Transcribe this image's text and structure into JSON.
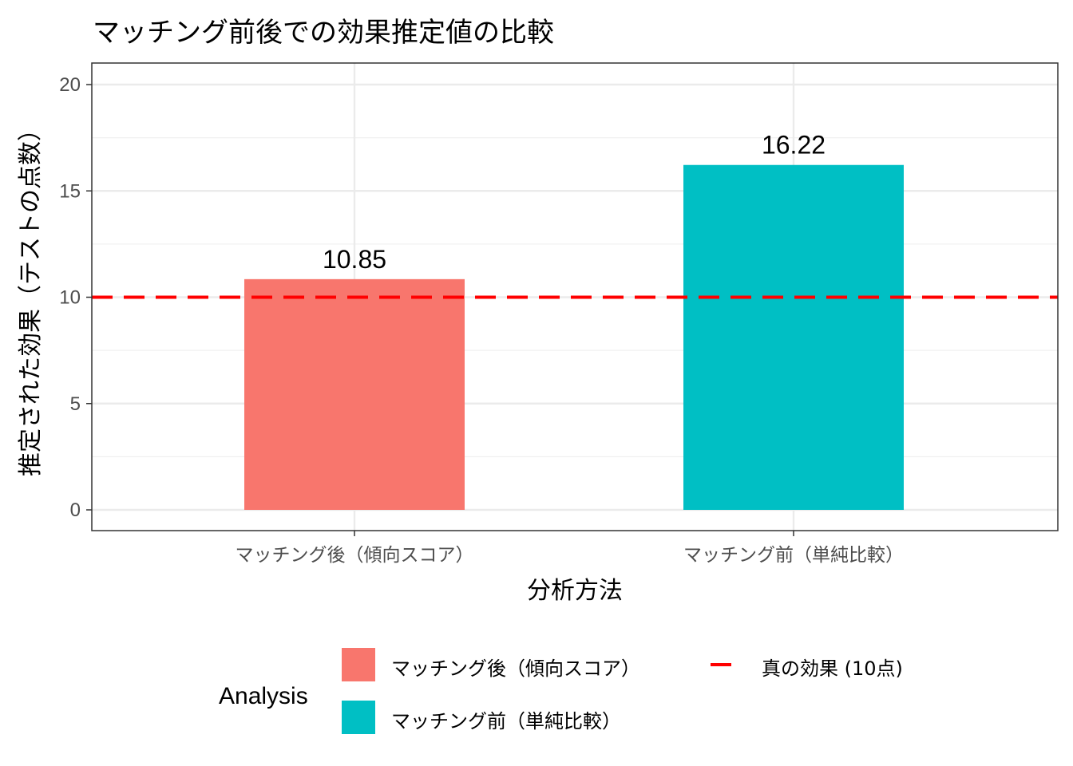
{
  "chart_data": {
    "type": "bar",
    "title": "マッチング前後での効果推定値の比較",
    "xlabel": "分析方法",
    "ylabel": "推定された効果（テストの点数）",
    "categories": [
      "マッチング後（傾向スコア）",
      "マッチング前（単純比較）"
    ],
    "values": [
      10.85,
      16.22
    ],
    "data_labels": [
      "10.85",
      "16.22"
    ],
    "colors": [
      "#F8766D",
      "#00BFC4"
    ],
    "ylim": [
      0,
      20
    ],
    "yticks": [
      0,
      5,
      10,
      15,
      20
    ],
    "grid": true,
    "reference_line": {
      "value": 10,
      "label": "真の効果 (10点)",
      "color": "#FF0000",
      "style": "dashed"
    },
    "legend": {
      "title": "Analysis",
      "placement": "bottom",
      "entries": [
        "マッチング後（傾向スコア）",
        "マッチング前（単純比較）"
      ]
    }
  }
}
